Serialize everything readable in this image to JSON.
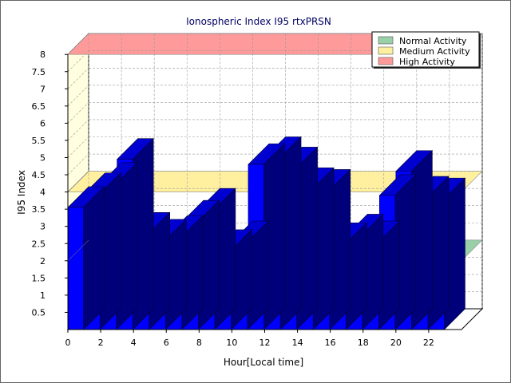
{
  "chart_data": {
    "type": "bar",
    "title": "Ionospheric Index I95 rtxPRSN",
    "xlabel": "Hour[Local time]",
    "ylabel": "I95 Index",
    "ylim": [
      0,
      8
    ],
    "yticks": [
      "0.5",
      "1",
      "1.5",
      "2",
      "2.5",
      "3",
      "3.5",
      "4",
      "4.5",
      "5",
      "5.5",
      "6",
      "6.5",
      "7",
      "7.5",
      "8"
    ],
    "xticks": [
      "0",
      "2",
      "4",
      "6",
      "8",
      "10",
      "12",
      "14",
      "16",
      "18",
      "20",
      "22"
    ],
    "categories": [
      0,
      1,
      2,
      3,
      4,
      5,
      6,
      7,
      8,
      9,
      10,
      11,
      12,
      13,
      14,
      15,
      16,
      17,
      18,
      19,
      20,
      21,
      22,
      23
    ],
    "values": [
      3.55,
      3.95,
      4.25,
      4.95,
      2.8,
      2.6,
      2.7,
      3.15,
      3.5,
      2.3,
      2.55,
      4.8,
      5.0,
      4.7,
      4.1,
      4.05,
      2.5,
      2.75,
      2.55,
      3.9,
      4.6,
      3.85,
      3.8,
      null
    ],
    "bar_color": "#0000ff",
    "bands": [
      {
        "name": "Normal Activity",
        "value": 2,
        "color": "#99d0a8"
      },
      {
        "name": "Medium Activity",
        "value": 4,
        "color": "#fff0a0"
      },
      {
        "name": "High Activity",
        "value": 8,
        "color": "#ff9a9a"
      }
    ],
    "legend_position": "top-right",
    "grid": true
  }
}
